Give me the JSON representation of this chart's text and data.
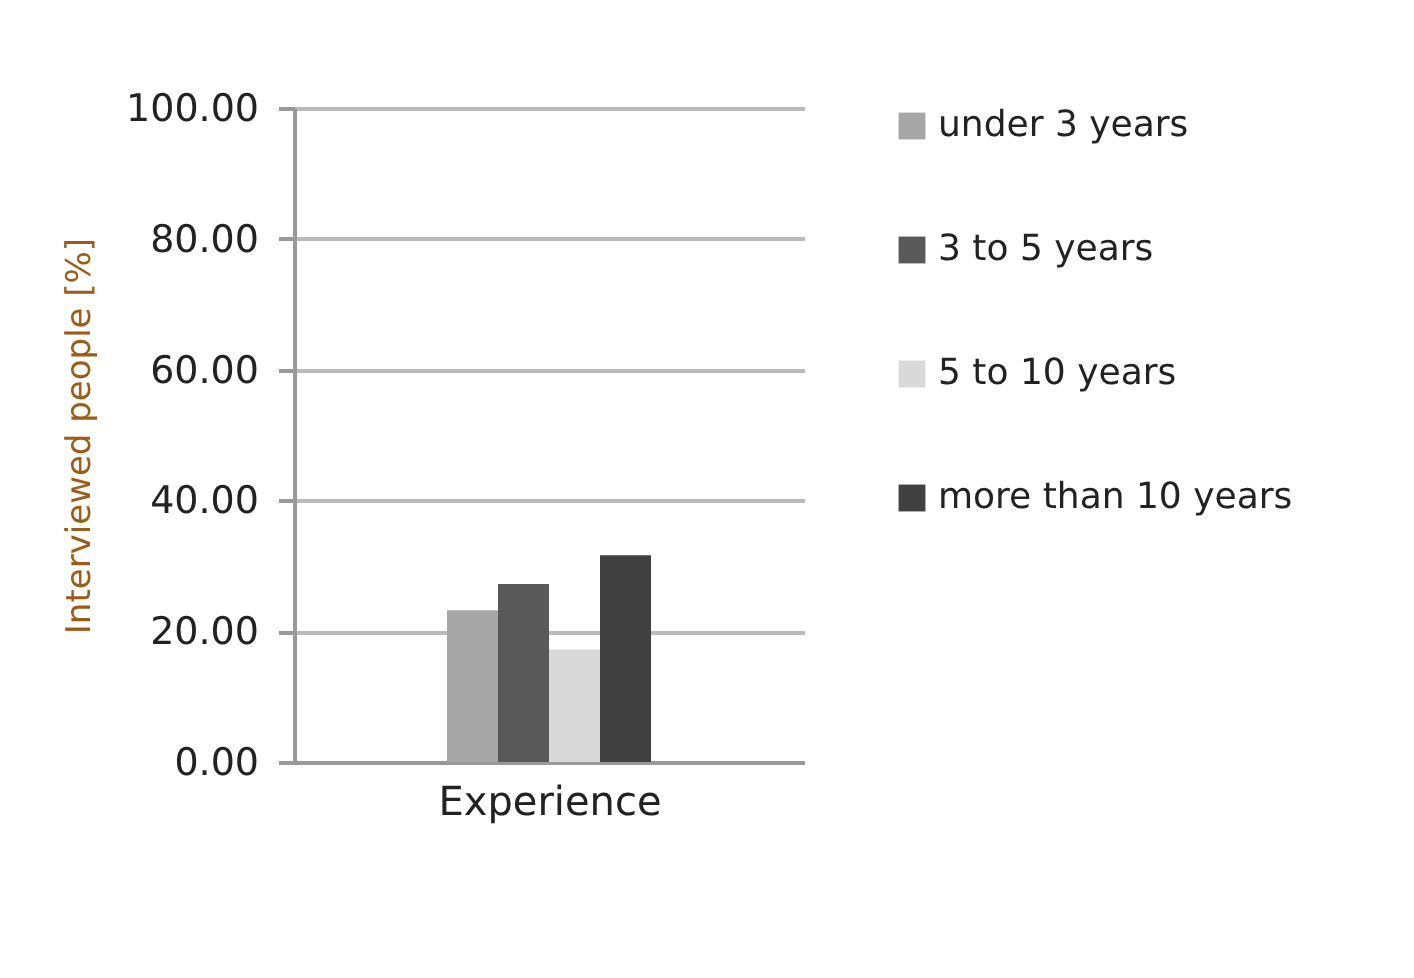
{
  "chart_data": {
    "type": "bar",
    "xlabel": "Experience",
    "ylabel": "Interviewed people [%]",
    "categories": [
      null
    ],
    "series": [
      {
        "name": "under 3 years",
        "color": "#a6a6a6",
        "values": [
          23.2
        ]
      },
      {
        "name": "3 to 5 years",
        "color": "#595959",
        "values": [
          27.2
        ]
      },
      {
        "name": "5 to 10 years",
        "color": "#d9d9d9",
        "values": [
          17.2
        ]
      },
      {
        "name": "more than 10 years",
        "color": "#404040",
        "values": [
          31.6
        ]
      }
    ],
    "ylim": [
      0,
      100
    ],
    "yticks": [
      {
        "value": 0,
        "label": "0.00"
      },
      {
        "value": 20,
        "label": "20.00"
      },
      {
        "value": 40,
        "label": "40.00"
      },
      {
        "value": 60,
        "label": "60.00"
      },
      {
        "value": 80,
        "label": "80.00"
      },
      {
        "value": 100,
        "label": "100.00"
      }
    ],
    "grid": "y",
    "legend": "right"
  }
}
